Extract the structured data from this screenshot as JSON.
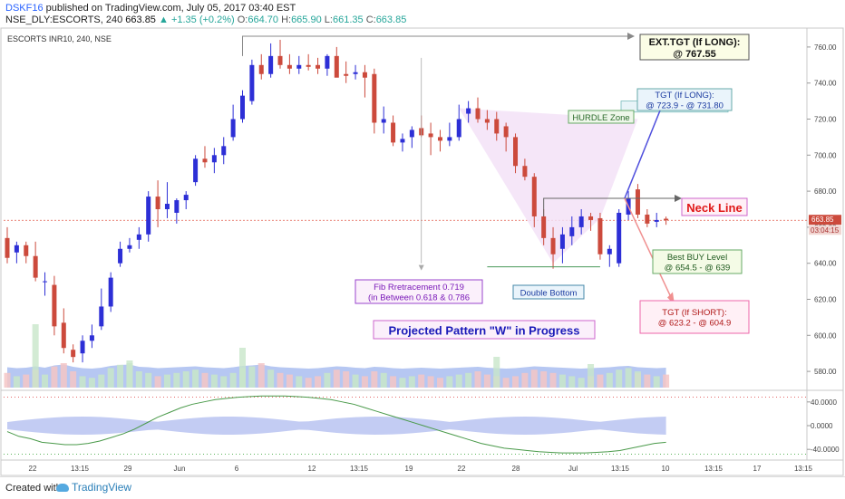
{
  "header": {
    "user": "DSKF16",
    "published_text": "published on TradingView.com, July 05, 2017 03:40 EST",
    "symbol": "NSE_DLY:ESCORTS, 240",
    "last": "663.85",
    "change": "▲ +1.35 (+0.2%)",
    "o_label": "O:",
    "o_value": "664.70",
    "h_label": "H:",
    "h_value": "665.90",
    "l_label": "L:",
    "l_value": "661.35",
    "c_label": "C:",
    "c_value": "663.85"
  },
  "footer": {
    "created_with": "Created with",
    "brand": "TradingView"
  },
  "colors": {
    "up": "#2d2fd6",
    "down": "#cc4a3c",
    "accent": "#2962ff",
    "bands": "#9db4ee",
    "projection_fill": "#f3e2f7",
    "bullish_arrow": "#5050dd",
    "bearish_arrow": "#f09090"
  },
  "chart_data": {
    "type": "candlestick",
    "title": "ESCORTS INR10, 240, NSE",
    "ylim": [
      570,
      770
    ],
    "yticks": [
      580,
      600,
      620,
      640,
      660,
      680,
      700,
      720,
      740,
      760
    ],
    "current_price": "663.85",
    "countdown": "03:04:15",
    "x_ticks": [
      "22",
      "13:15",
      "29",
      "Jun",
      "6",
      "12",
      "13:15",
      "19",
      "22",
      "28",
      "Jul",
      "13:15",
      "10",
      "13:15",
      "17",
      "13:15"
    ],
    "candles": [
      {
        "o": 654,
        "h": 660,
        "l": 640,
        "c": 643
      },
      {
        "o": 646,
        "h": 652,
        "l": 640,
        "c": 650
      },
      {
        "o": 650,
        "h": 652,
        "l": 640,
        "c": 644
      },
      {
        "o": 644,
        "h": 652,
        "l": 630,
        "c": 632
      },
      {
        "o": 630,
        "h": 635,
        "l": 622,
        "c": 630
      },
      {
        "o": 628,
        "h": 633,
        "l": 600,
        "c": 605
      },
      {
        "o": 607,
        "h": 615,
        "l": 590,
        "c": 593
      },
      {
        "o": 592,
        "h": 595,
        "l": 585,
        "c": 588
      },
      {
        "o": 590,
        "h": 600,
        "l": 585,
        "c": 597
      },
      {
        "o": 597,
        "h": 606,
        "l": 593,
        "c": 600
      },
      {
        "o": 605,
        "h": 626,
        "l": 603,
        "c": 616
      },
      {
        "o": 616,
        "h": 635,
        "l": 613,
        "c": 632
      },
      {
        "o": 640,
        "h": 652,
        "l": 638,
        "c": 648
      },
      {
        "o": 648,
        "h": 654,
        "l": 646,
        "c": 650
      },
      {
        "o": 653,
        "h": 660,
        "l": 648,
        "c": 656
      },
      {
        "o": 656,
        "h": 680,
        "l": 652,
        "c": 677
      },
      {
        "o": 677,
        "h": 686,
        "l": 660,
        "c": 670
      },
      {
        "o": 670,
        "h": 685,
        "l": 665,
        "c": 673
      },
      {
        "o": 668,
        "h": 676,
        "l": 662,
        "c": 675
      },
      {
        "o": 675,
        "h": 680,
        "l": 670,
        "c": 678
      },
      {
        "o": 685,
        "h": 700,
        "l": 683,
        "c": 698
      },
      {
        "o": 698,
        "h": 705,
        "l": 693,
        "c": 696
      },
      {
        "o": 696,
        "h": 704,
        "l": 690,
        "c": 700
      },
      {
        "o": 700,
        "h": 710,
        "l": 695,
        "c": 705
      },
      {
        "o": 710,
        "h": 728,
        "l": 708,
        "c": 720
      },
      {
        "o": 720,
        "h": 736,
        "l": 718,
        "c": 733
      },
      {
        "o": 730,
        "h": 753,
        "l": 728,
        "c": 750
      },
      {
        "o": 750,
        "h": 756,
        "l": 742,
        "c": 745
      },
      {
        "o": 745,
        "h": 762,
        "l": 743,
        "c": 755
      },
      {
        "o": 755,
        "h": 764,
        "l": 748,
        "c": 750
      },
      {
        "o": 750,
        "h": 756,
        "l": 745,
        "c": 748
      },
      {
        "o": 748,
        "h": 755,
        "l": 745,
        "c": 750
      },
      {
        "o": 750,
        "h": 756,
        "l": 747,
        "c": 749
      },
      {
        "o": 750,
        "h": 754,
        "l": 745,
        "c": 748
      },
      {
        "o": 748,
        "h": 756,
        "l": 744,
        "c": 755
      },
      {
        "o": 755,
        "h": 760,
        "l": 744,
        "c": 743
      },
      {
        "o": 745,
        "h": 752,
        "l": 740,
        "c": 744
      },
      {
        "o": 745,
        "h": 750,
        "l": 742,
        "c": 746
      },
      {
        "o": 746,
        "h": 750,
        "l": 732,
        "c": 743
      },
      {
        "o": 745,
        "h": 748,
        "l": 712,
        "c": 718
      },
      {
        "o": 718,
        "h": 727,
        "l": 712,
        "c": 720
      },
      {
        "o": 718,
        "h": 722,
        "l": 705,
        "c": 707
      },
      {
        "o": 707,
        "h": 712,
        "l": 702,
        "c": 709
      },
      {
        "o": 710,
        "h": 716,
        "l": 704,
        "c": 714
      },
      {
        "o": 715,
        "h": 722,
        "l": 710,
        "c": 711
      },
      {
        "o": 712,
        "h": 718,
        "l": 700,
        "c": 710
      },
      {
        "o": 710,
        "h": 714,
        "l": 702,
        "c": 708
      },
      {
        "o": 708,
        "h": 718,
        "l": 705,
        "c": 710
      },
      {
        "o": 710,
        "h": 728,
        "l": 708,
        "c": 720
      },
      {
        "o": 723,
        "h": 730,
        "l": 718,
        "c": 726
      },
      {
        "o": 726,
        "h": 732,
        "l": 718,
        "c": 720
      },
      {
        "o": 720,
        "h": 725,
        "l": 714,
        "c": 718
      },
      {
        "o": 720,
        "h": 724,
        "l": 708,
        "c": 712
      },
      {
        "o": 716,
        "h": 718,
        "l": 702,
        "c": 710
      },
      {
        "o": 710,
        "h": 712,
        "l": 690,
        "c": 694
      },
      {
        "o": 694,
        "h": 698,
        "l": 686,
        "c": 688
      },
      {
        "o": 688,
        "h": 690,
        "l": 660,
        "c": 666
      },
      {
        "o": 666,
        "h": 670,
        "l": 650,
        "c": 654
      },
      {
        "o": 654,
        "h": 660,
        "l": 637,
        "c": 645
      },
      {
        "o": 648,
        "h": 660,
        "l": 640,
        "c": 656
      },
      {
        "o": 655,
        "h": 666,
        "l": 650,
        "c": 660
      },
      {
        "o": 660,
        "h": 670,
        "l": 656,
        "c": 666
      },
      {
        "o": 666,
        "h": 668,
        "l": 658,
        "c": 664
      },
      {
        "o": 665,
        "h": 668,
        "l": 642,
        "c": 645
      },
      {
        "o": 645,
        "h": 650,
        "l": 638,
        "c": 648
      },
      {
        "o": 640,
        "h": 670,
        "l": 638,
        "c": 668
      },
      {
        "o": 667,
        "h": 680,
        "l": 664,
        "c": 676
      },
      {
        "o": 681,
        "h": 684,
        "l": 665,
        "c": 667
      },
      {
        "o": 667,
        "h": 670,
        "l": 660,
        "c": 662
      },
      {
        "o": 663,
        "h": 668,
        "l": 660,
        "c": 664
      },
      {
        "o": 664.7,
        "h": 665.9,
        "l": 661.35,
        "c": 663.85
      }
    ],
    "volume": [
      18,
      14,
      16,
      22,
      16,
      26,
      30,
      20,
      14,
      12,
      16,
      24,
      28,
      30,
      20,
      18,
      14,
      16,
      18,
      20,
      22,
      18,
      16,
      14,
      18,
      24,
      26,
      30,
      22,
      18,
      16,
      14,
      12,
      14,
      18,
      22,
      20,
      16,
      14,
      20,
      18,
      14,
      12,
      14,
      16,
      14,
      12,
      14,
      16,
      18,
      20,
      16,
      14,
      12,
      14,
      18,
      22,
      20,
      18,
      16,
      14,
      12,
      14,
      16,
      18,
      22,
      24,
      18,
      16,
      14,
      16
    ],
    "volume_spikes": [
      [
        3,
        70
      ],
      [
        13,
        30
      ],
      [
        25,
        44
      ],
      [
        52,
        34
      ],
      [
        62,
        26
      ],
      [
        67,
        18
      ]
    ],
    "oscillator": {
      "yticks": [
        "40.0000",
        "0.0000",
        "-40.0000"
      ],
      "ylim": [
        -55,
        55
      ],
      "line": [
        -10,
        -18,
        -22,
        -28,
        -30,
        -32,
        -32,
        -30,
        -26,
        -20,
        -14,
        -6,
        4,
        14,
        22,
        30,
        36,
        40,
        44,
        46,
        48,
        49,
        50,
        50,
        50,
        49,
        48,
        46,
        44,
        40,
        36,
        30,
        24,
        18,
        12,
        6,
        0,
        -6,
        -12,
        -18,
        -24,
        -30,
        -34,
        -38,
        -40,
        -42,
        -44,
        -45,
        -46,
        -46,
        -46,
        -45,
        -44,
        -42,
        -38,
        -34,
        -30,
        -28
      ]
    },
    "annotations": {
      "ext_tgt": [
        "EXT.TGT (If LONG):",
        "@ 767.55"
      ],
      "tgt_long": [
        "TGT (If LONG):",
        "@ 723.9 - @ 731.80"
      ],
      "hurdle": "HURDLE Zone",
      "neck": "Neck Line",
      "best_buy": [
        "Best BUY Level",
        "@ 654.5 - @ 639"
      ],
      "tgt_short": [
        "TGT (If SHORT):",
        "@ 623.2 - @ 604.9"
      ],
      "fib": [
        "Fib Rretracement 0.719",
        "(in Between 0.618 & 0.786"
      ],
      "double_bottom": "Double Bottom",
      "pattern": "Projected Pattern \"W\" in Progress"
    }
  }
}
